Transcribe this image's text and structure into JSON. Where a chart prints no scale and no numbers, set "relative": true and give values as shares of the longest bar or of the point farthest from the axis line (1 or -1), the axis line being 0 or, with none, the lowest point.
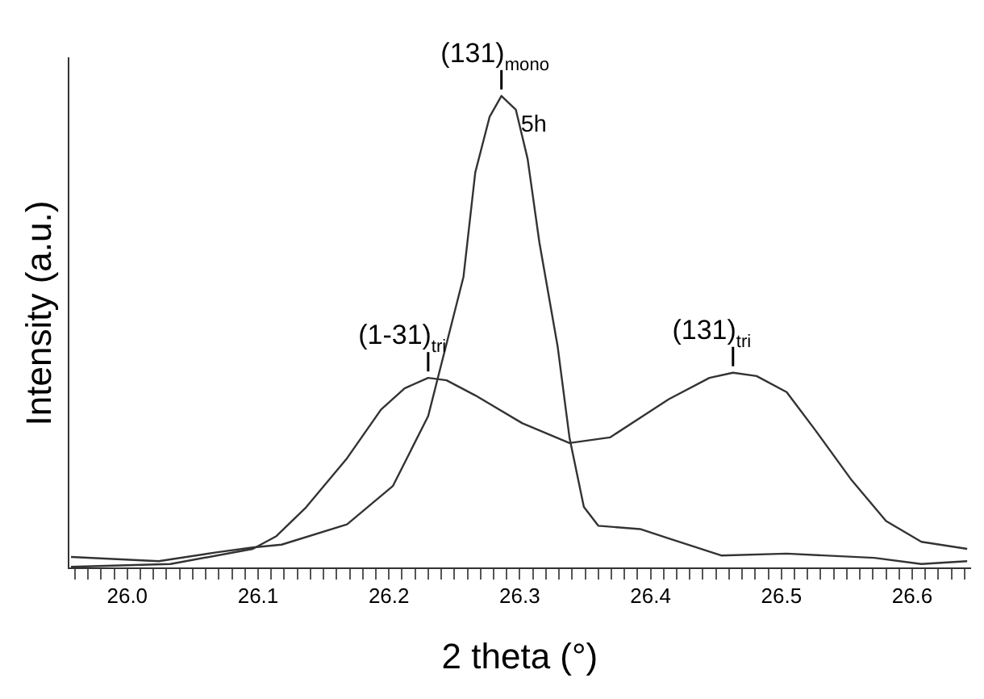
{
  "chart_data": {
    "type": "line",
    "xlabel": "2 theta (°)",
    "ylabel": "Intensity (a.u.)",
    "relative": true,
    "xlim": [
      25.955,
      26.645
    ],
    "xticks": [
      {
        "value": 25.96,
        "label": null
      },
      {
        "value": 25.97,
        "label": null
      },
      {
        "value": 25.98,
        "label": null
      },
      {
        "value": 25.99,
        "label": null
      },
      {
        "value": 26.0,
        "label": "26.0"
      },
      {
        "value": 26.01,
        "label": null
      },
      {
        "value": 26.02,
        "label": null
      },
      {
        "value": 26.03,
        "label": null
      },
      {
        "value": 26.04,
        "label": null
      },
      {
        "value": 26.05,
        "label": null
      },
      {
        "value": 26.06,
        "label": null
      },
      {
        "value": 26.07,
        "label": null
      },
      {
        "value": 26.08,
        "label": null
      },
      {
        "value": 26.09,
        "label": null
      },
      {
        "value": 26.1,
        "label": "26.1"
      },
      {
        "value": 26.11,
        "label": null
      },
      {
        "value": 26.12,
        "label": null
      },
      {
        "value": 26.13,
        "label": null
      },
      {
        "value": 26.14,
        "label": null
      },
      {
        "value": 26.15,
        "label": null
      },
      {
        "value": 26.16,
        "label": null
      },
      {
        "value": 26.17,
        "label": null
      },
      {
        "value": 26.18,
        "label": null
      },
      {
        "value": 26.19,
        "label": null
      },
      {
        "value": 26.2,
        "label": "26.2"
      },
      {
        "value": 26.21,
        "label": null
      },
      {
        "value": 26.22,
        "label": null
      },
      {
        "value": 26.23,
        "label": null
      },
      {
        "value": 26.24,
        "label": null
      },
      {
        "value": 26.25,
        "label": null
      },
      {
        "value": 26.26,
        "label": null
      },
      {
        "value": 26.27,
        "label": null
      },
      {
        "value": 26.28,
        "label": null
      },
      {
        "value": 26.29,
        "label": null
      },
      {
        "value": 26.3,
        "label": "26.3"
      },
      {
        "value": 26.31,
        "label": null
      },
      {
        "value": 26.32,
        "label": null
      },
      {
        "value": 26.33,
        "label": null
      },
      {
        "value": 26.34,
        "label": null
      },
      {
        "value": 26.35,
        "label": null
      },
      {
        "value": 26.36,
        "label": null
      },
      {
        "value": 26.37,
        "label": null
      },
      {
        "value": 26.38,
        "label": null
      },
      {
        "value": 26.39,
        "label": null
      },
      {
        "value": 26.4,
        "label": "26.4"
      },
      {
        "value": 26.41,
        "label": null
      },
      {
        "value": 26.42,
        "label": null
      },
      {
        "value": 26.43,
        "label": null
      },
      {
        "value": 26.44,
        "label": null
      },
      {
        "value": 26.45,
        "label": null
      },
      {
        "value": 26.46,
        "label": null
      },
      {
        "value": 26.47,
        "label": null
      },
      {
        "value": 26.48,
        "label": null
      },
      {
        "value": 26.49,
        "label": null
      },
      {
        "value": 26.5,
        "label": "26.5"
      },
      {
        "value": 26.51,
        "label": null
      },
      {
        "value": 26.52,
        "label": null
      },
      {
        "value": 26.53,
        "label": null
      },
      {
        "value": 26.54,
        "label": null
      },
      {
        "value": 26.55,
        "label": null
      },
      {
        "value": 26.56,
        "label": null
      },
      {
        "value": 26.57,
        "label": null
      },
      {
        "value": 26.58,
        "label": null
      },
      {
        "value": 26.59,
        "label": null
      },
      {
        "value": 26.6,
        "label": "26.6"
      },
      {
        "value": 26.61,
        "label": null
      },
      {
        "value": 26.62,
        "label": null
      },
      {
        "value": 26.63,
        "label": null
      },
      {
        "value": 26.64,
        "label": null
      }
    ],
    "grid": false,
    "legend": false,
    "marker": "none",
    "line_style": "solid",
    "series": [
      {
        "color": "#333333",
        "x": [
          25.957,
          26.024,
          26.069,
          26.096,
          26.118,
          26.168,
          26.203,
          26.23,
          26.257,
          26.266,
          26.277,
          26.286,
          26.297,
          26.306,
          26.315,
          26.329,
          26.338,
          26.349,
          26.36,
          26.392,
          26.414,
          26.454,
          26.504,
          26.571,
          26.607,
          26.642
        ],
        "values": [
          0.024,
          0.015,
          0.034,
          0.044,
          0.05,
          0.093,
          0.174,
          0.322,
          0.617,
          0.838,
          0.956,
          1,
          0.971,
          0.867,
          0.69,
          0.469,
          0.277,
          0.13,
          0.09,
          0.083,
          0.063,
          0.027,
          0.031,
          0.022,
          0.009,
          0.015
        ]
      },
      {
        "color": "#333333",
        "x": [
          25.957,
          26.033,
          26.096,
          26.114,
          26.136,
          26.168,
          26.194,
          26.212,
          26.23,
          26.244,
          26.266,
          26.302,
          26.338,
          26.369,
          26.414,
          26.445,
          26.463,
          26.481,
          26.504,
          26.526,
          26.553,
          26.58,
          26.607,
          26.642
        ],
        "values": [
          0.003,
          0.009,
          0.041,
          0.068,
          0.127,
          0.233,
          0.336,
          0.381,
          0.403,
          0.398,
          0.366,
          0.307,
          0.265,
          0.277,
          0.358,
          0.403,
          0.414,
          0.407,
          0.373,
          0.292,
          0.189,
          0.1,
          0.056,
          0.041
        ]
      }
    ],
    "annotations": [
      {
        "text": "(131)$_{mono}$",
        "x": 26.286,
        "y": 1
      },
      "5h",
      {
        "text": "(1-31)$_{tri}$",
        "x": 26.23,
        "y": 0.403
      },
      {
        "text": "(131)$_{tri}$",
        "x": 26.463,
        "y": 0.414
      }
    ]
  }
}
